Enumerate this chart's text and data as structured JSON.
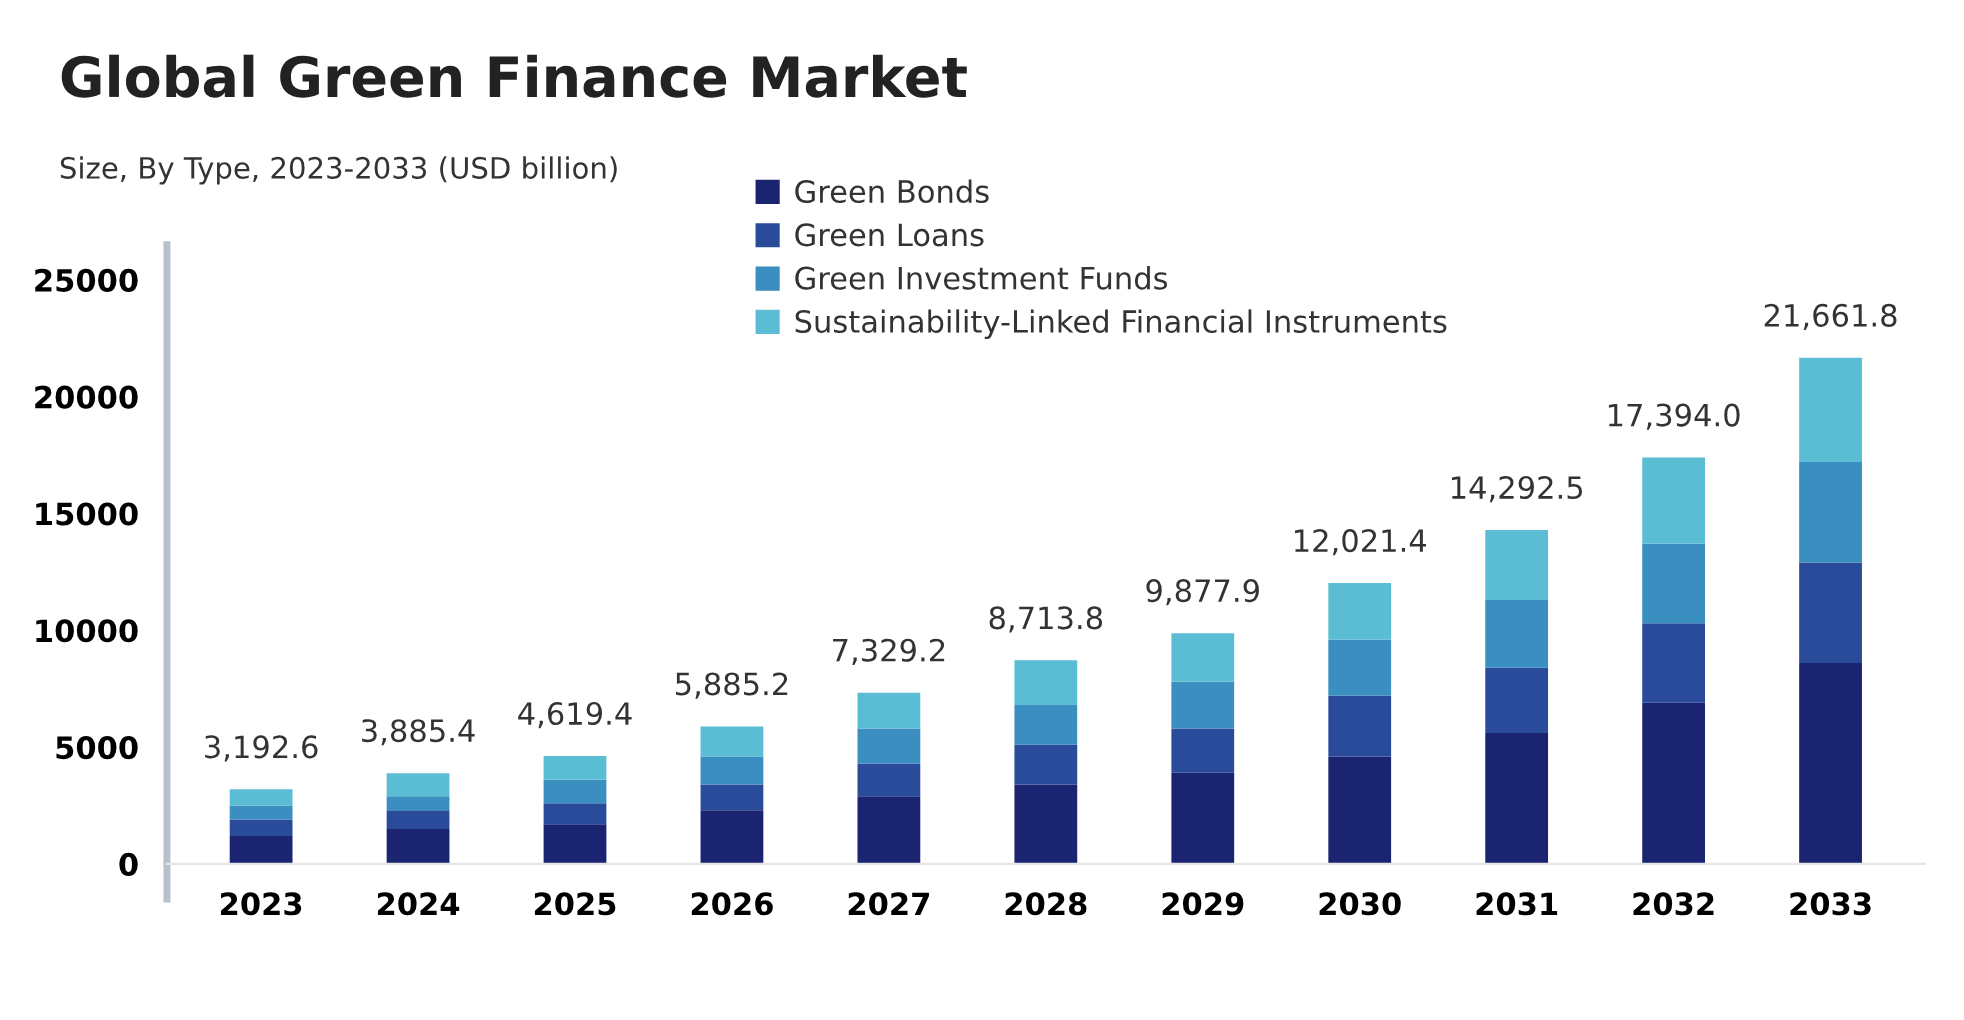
{
  "chart_data": {
    "type": "bar",
    "stacked": true,
    "title": "Global Green Finance Market",
    "subtitle": "Size, By Type, 2023-2033 (USD billion)",
    "categories": [
      "2023",
      "2024",
      "2025",
      "2026",
      "2027",
      "2028",
      "2029",
      "2030",
      "2031",
      "2032",
      "2033"
    ],
    "series": [
      {
        "name": "Green Bonds",
        "color": "#1b2470",
        "values": [
          1200,
          1500,
          1700,
          2300,
          2900,
          3400,
          3900,
          4600,
          5600,
          6900,
          8600
        ]
      },
      {
        "name": "Green Loans",
        "color": "#2a4a9a",
        "values": [
          700,
          800,
          900,
          1100,
          1400,
          1700,
          1900,
          2600,
          2800,
          3400,
          4300
        ]
      },
      {
        "name": "Green Investment Funds",
        "color": "#3a8fc0",
        "values": [
          600,
          600,
          1000,
          1200,
          1500,
          1700,
          2000,
          2400,
          2900,
          3400,
          4300
        ]
      },
      {
        "name": "Sustainability-Linked Financial Instruments",
        "color": "#5bbdd3",
        "values": [
          692.6,
          985.4,
          1019.4,
          1285.2,
          1529.2,
          1913.8,
          2077.9,
          2421.4,
          2992.5,
          3694.0,
          4461.8
        ]
      }
    ],
    "totals": [
      "3,192.6",
      "3,885.4",
      "4,619.4",
      "5,885.2",
      "7,329.2",
      "8,713.8",
      "9,877.9",
      "12,021.4",
      "14,292.5",
      "17,394.0",
      "21,661.8"
    ],
    "ylim": [
      0,
      26500
    ],
    "yticks": [
      0,
      5000,
      10000,
      15000,
      20000,
      25000
    ],
    "grid": false,
    "legend": "top"
  }
}
